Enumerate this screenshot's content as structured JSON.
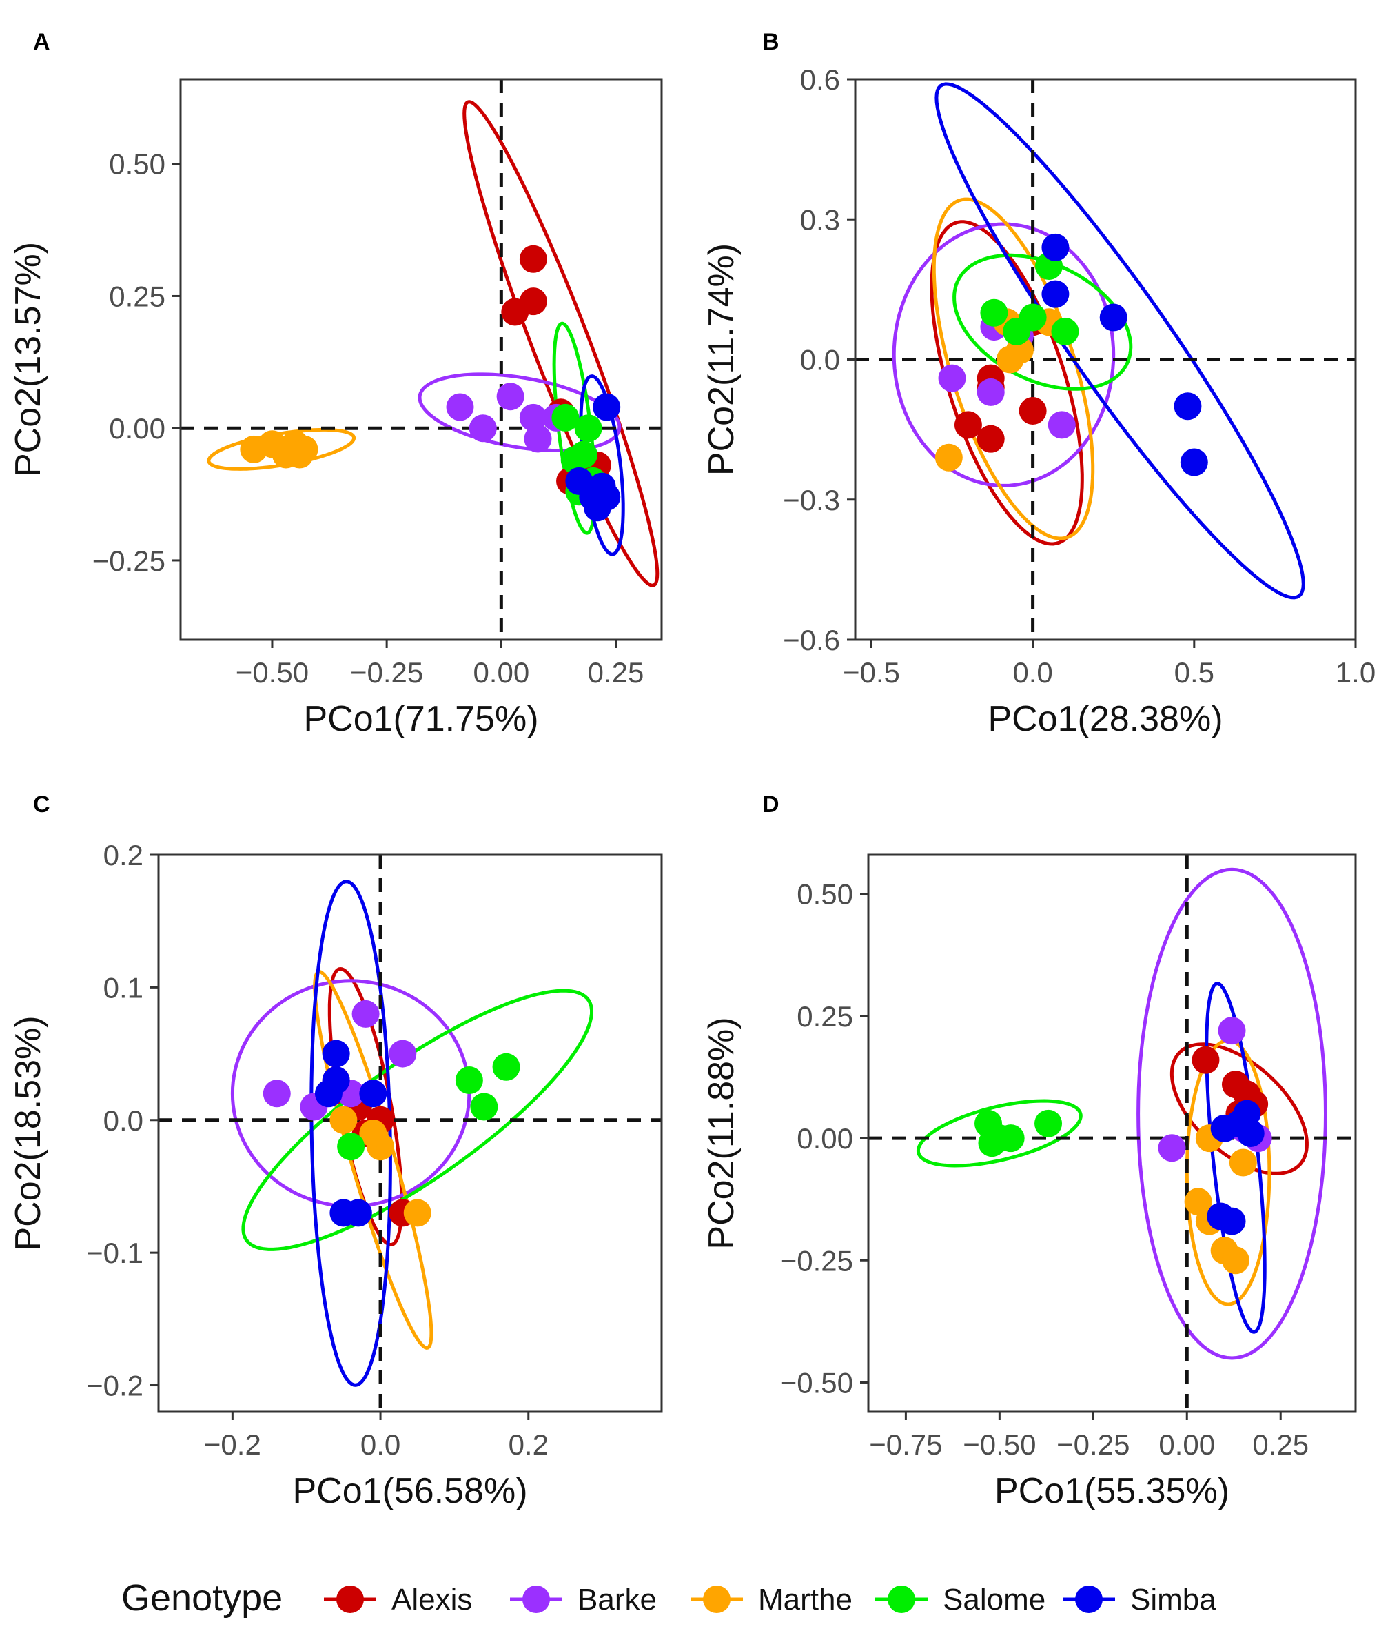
{
  "figure": {
    "legend_title": "Genotype",
    "legend_position": "bottom",
    "genotypes": [
      {
        "name": "Alexis",
        "color": "#CC0000"
      },
      {
        "name": "Barke",
        "color": "#9B30FF"
      },
      {
        "name": "Marthe",
        "color": "#FFA500"
      },
      {
        "name": "Salome",
        "color": "#00EE00"
      },
      {
        "name": "Simba",
        "color": "#0000EE"
      }
    ]
  },
  "chart_data": [
    {
      "panel": "A",
      "type": "scatter",
      "xlabel": "PCo1(71.75%)",
      "ylabel": "PCo2(13.57%)",
      "xlim": [
        -0.7,
        0.35
      ],
      "ylim": [
        -0.4,
        0.66
      ],
      "xticks": [
        -0.5,
        -0.25,
        0,
        0.25
      ],
      "xtick_labels": [
        "−0.50",
        "−0.25",
        "0.00",
        "0.25"
      ],
      "yticks": [
        -0.25,
        0,
        0.25,
        0.5
      ],
      "ytick_labels": [
        "−0.25",
        "0.00",
        "0.25",
        "0.50"
      ],
      "reference_lines": {
        "x": 0,
        "y": 0
      },
      "series": [
        {
          "name": "Alexis",
          "points": [
            [
              0.07,
              0.32
            ],
            [
              0.03,
              0.22
            ],
            [
              0.07,
              0.24
            ],
            [
              0.13,
              0.03
            ],
            [
              0.21,
              -0.07
            ],
            [
              0.15,
              -0.1
            ]
          ],
          "ellipse": {
            "cx": 0.13,
            "cy": 0.16,
            "rx": 0.5,
            "ry": 0.06,
            "angle": -66
          }
        },
        {
          "name": "Barke",
          "points": [
            [
              -0.09,
              0.04
            ],
            [
              -0.04,
              0
            ],
            [
              0.02,
              0.06
            ],
            [
              0.07,
              0.02
            ],
            [
              0.08,
              -0.02
            ],
            [
              0.12,
              0.02
            ]
          ],
          "ellipse": {
            "cx": 0.04,
            "cy": 0.03,
            "rx": 0.22,
            "ry": 0.066,
            "angle": -8
          }
        },
        {
          "name": "Marthe",
          "points": [
            [
              -0.54,
              -0.04
            ],
            [
              -0.5,
              -0.03
            ],
            [
              -0.47,
              -0.05
            ],
            [
              -0.45,
              -0.03
            ],
            [
              -0.43,
              -0.04
            ],
            [
              -0.44,
              -0.05
            ]
          ],
          "ellipse": {
            "cx": -0.48,
            "cy": -0.04,
            "rx": 0.16,
            "ry": 0.03,
            "angle": 8
          }
        },
        {
          "name": "Salome",
          "points": [
            [
              0.14,
              0.02
            ],
            [
              0.16,
              -0.06
            ],
            [
              0.18,
              -0.05
            ],
            [
              0.2,
              -0.1
            ],
            [
              0.17,
              -0.12
            ],
            [
              0.19,
              0
            ]
          ],
          "ellipse": {
            "cx": 0.16,
            "cy": 0.0,
            "rx": 0.2,
            "ry": 0.035,
            "angle": -82
          }
        },
        {
          "name": "Simba",
          "points": [
            [
              0.23,
              0.04
            ],
            [
              0.2,
              -0.13
            ],
            [
              0.21,
              -0.15
            ],
            [
              0.23,
              -0.13
            ],
            [
              0.17,
              -0.1
            ],
            [
              0.22,
              -0.11
            ]
          ],
          "ellipse": {
            "cx": 0.22,
            "cy": -0.07,
            "rx": 0.17,
            "ry": 0.04,
            "angle": -82
          }
        }
      ]
    },
    {
      "panel": "B",
      "type": "scatter",
      "xlabel": "PCo1(28.38%)",
      "ylabel": "PCo2(11.74%)",
      "xlim": [
        -0.55,
        1.0
      ],
      "ylim": [
        -0.6,
        0.6
      ],
      "xticks": [
        -0.5,
        0,
        0.5,
        1
      ],
      "xtick_labels": [
        "−0.5",
        "0.0",
        "0.5",
        "1.0"
      ],
      "yticks": [
        -0.6,
        -0.3,
        0,
        0.3,
        0.6
      ],
      "ytick_labels": [
        "−0.6",
        "−0.3",
        "0.0",
        "0.3",
        "0.6"
      ],
      "reference_lines": {
        "x": 0,
        "y": 0
      },
      "series": [
        {
          "name": "Alexis",
          "points": [
            [
              -0.13,
              -0.04
            ],
            [
              -0.2,
              -0.14
            ],
            [
              -0.13,
              -0.17
            ],
            [
              0,
              -0.11
            ],
            [
              0,
              0.08
            ],
            [
              -0.13,
              -0.06
            ]
          ],
          "ellipse": {
            "cx": -0.08,
            "cy": -0.05,
            "rx": 0.38,
            "ry": 0.17,
            "angle": -62
          }
        },
        {
          "name": "Barke",
          "points": [
            [
              -0.12,
              0.07
            ],
            [
              -0.04,
              0.05
            ],
            [
              -0.25,
              -0.04
            ],
            [
              -0.13,
              -0.07
            ],
            [
              0.09,
              -0.14
            ]
          ],
          "ellipse": {
            "cx": -0.09,
            "cy": 0.01,
            "rx": 0.34,
            "ry": 0.28,
            "angle": 0
          }
        },
        {
          "name": "Marthe",
          "points": [
            [
              -0.08,
              0.08
            ],
            [
              -0.04,
              0.02
            ],
            [
              -0.07,
              0
            ],
            [
              -0.26,
              -0.21
            ],
            [
              0.05,
              0.08
            ]
          ],
          "ellipse": {
            "cx": -0.06,
            "cy": -0.02,
            "rx": 0.4,
            "ry": 0.18,
            "angle": -62
          }
        },
        {
          "name": "Salome",
          "points": [
            [
              -0.12,
              0.1
            ],
            [
              0,
              0.09
            ],
            [
              0.1,
              0.06
            ],
            [
              -0.05,
              0.06
            ],
            [
              0.05,
              0.2
            ]
          ],
          "ellipse": {
            "cx": 0.03,
            "cy": 0.08,
            "rx": 0.28,
            "ry": 0.13,
            "angle": -14
          }
        },
        {
          "name": "Simba",
          "points": [
            [
              0.07,
              0.24
            ],
            [
              0.07,
              0.14
            ],
            [
              0.25,
              0.09
            ],
            [
              0.48,
              -0.1
            ],
            [
              0.5,
              -0.22
            ]
          ],
          "ellipse": {
            "cx": 0.27,
            "cy": 0.04,
            "rx": 0.78,
            "ry": 0.13,
            "angle": -44
          }
        }
      ]
    },
    {
      "panel": "C",
      "type": "scatter",
      "xlabel": "PCo1(56.58%)",
      "ylabel": "PCo2(18.53%)",
      "xlim": [
        -0.3,
        0.38
      ],
      "ylim": [
        -0.22,
        0.2
      ],
      "xticks": [
        -0.2,
        0,
        0.2
      ],
      "xtick_labels": [
        "−0.2",
        "0.0",
        "0.2"
      ],
      "yticks": [
        -0.2,
        -0.1,
        0,
        0.1,
        0.2
      ],
      "ytick_labels": [
        "−0.2",
        "−0.1",
        "0.0",
        "0.1",
        "0.2"
      ],
      "reference_lines": {
        "x": 0,
        "y": 0
      },
      "series": [
        {
          "name": "Alexis",
          "points": [
            [
              -0.06,
              0.03
            ],
            [
              -0.03,
              0.01
            ],
            [
              0,
              0
            ],
            [
              -0.02,
              -0.01
            ],
            [
              0.03,
              -0.07
            ]
          ],
          "ellipse": {
            "cx": -0.02,
            "cy": 0.01,
            "rx": 0.11,
            "ry": 0.033,
            "angle": -70
          }
        },
        {
          "name": "Barke",
          "points": [
            [
              -0.14,
              0.02
            ],
            [
              -0.02,
              0.08
            ],
            [
              0.03,
              0.05
            ],
            [
              -0.09,
              0.01
            ],
            [
              -0.04,
              0.02
            ]
          ],
          "ellipse": {
            "cx": -0.04,
            "cy": 0.02,
            "rx": 0.16,
            "ry": 0.085,
            "angle": 0
          }
        },
        {
          "name": "Marthe",
          "points": [
            [
              0,
              -0.02
            ],
            [
              -0.01,
              -0.01
            ],
            [
              0.05,
              -0.07
            ],
            [
              -0.05,
              0
            ]
          ],
          "ellipse": {
            "cx": -0.01,
            "cy": -0.03,
            "rx": 0.16,
            "ry": 0.027,
            "angle": -62
          }
        },
        {
          "name": "Salome",
          "points": [
            [
              0.12,
              0.03
            ],
            [
              0.17,
              0.04
            ],
            [
              0.14,
              0.01
            ],
            [
              -0.04,
              -0.02
            ]
          ],
          "ellipse": {
            "cx": 0.05,
            "cy": 0.0,
            "rx": 0.25,
            "ry": 0.05,
            "angle": 20
          }
        },
        {
          "name": "Simba",
          "points": [
            [
              -0.06,
              0.05
            ],
            [
              -0.07,
              0.02
            ],
            [
              -0.06,
              0.03
            ],
            [
              -0.01,
              0.02
            ],
            [
              -0.05,
              -0.07
            ],
            [
              -0.03,
              -0.07
            ]
          ],
          "ellipse": {
            "cx": -0.04,
            "cy": -0.01,
            "rx": 0.19,
            "ry": 0.053,
            "angle": -88
          }
        }
      ]
    },
    {
      "panel": "D",
      "type": "scatter",
      "xlabel": "PCo1(55.35%)",
      "ylabel": "PCo2(11.88%)",
      "xlim": [
        -0.85,
        0.45
      ],
      "ylim": [
        -0.56,
        0.58
      ],
      "xticks": [
        -0.75,
        -0.5,
        -0.25,
        0,
        0.25
      ],
      "xtick_labels": [
        "−0.75",
        "−0.50",
        "−0.25",
        "0.00",
        "0.25"
      ],
      "yticks": [
        -0.5,
        -0.25,
        0,
        0.25,
        0.5
      ],
      "ytick_labels": [
        "−0.50",
        "−0.25",
        "0.00",
        "0.25",
        "0.50"
      ],
      "reference_lines": {
        "x": 0,
        "y": 0
      },
      "series": [
        {
          "name": "Alexis",
          "points": [
            [
              0.05,
              0.16
            ],
            [
              0.13,
              0.11
            ],
            [
              0.16,
              0.09
            ],
            [
              0.18,
              0.07
            ],
            [
              0.14,
              0.05
            ]
          ],
          "ellipse": {
            "cx": 0.14,
            "cy": 0.06,
            "rx": 0.2,
            "ry": 0.1,
            "angle": -30
          }
        },
        {
          "name": "Barke",
          "points": [
            [
              -0.04,
              -0.02
            ],
            [
              0.12,
              0.22
            ],
            [
              0.19,
              0
            ],
            [
              0.15,
              0.02
            ]
          ],
          "ellipse": {
            "cx": 0.12,
            "cy": 0.05,
            "rx": 0.25,
            "ry": 0.5,
            "angle": 0
          }
        },
        {
          "name": "Marthe",
          "points": [
            [
              0.03,
              -0.13
            ],
            [
              0.06,
              -0.17
            ],
            [
              0.1,
              -0.23
            ],
            [
              0.13,
              -0.25
            ],
            [
              0.15,
              -0.05
            ],
            [
              0.06,
              0
            ]
          ],
          "ellipse": {
            "cx": 0.11,
            "cy": -0.07,
            "rx": 0.11,
            "ry": 0.27,
            "angle": 0
          }
        },
        {
          "name": "Salome",
          "points": [
            [
              -0.53,
              0.03
            ],
            [
              -0.5,
              0
            ],
            [
              -0.47,
              0
            ],
            [
              -0.37,
              0.03
            ],
            [
              -0.52,
              -0.01
            ]
          ],
          "ellipse": {
            "cx": -0.5,
            "cy": 0.01,
            "rx": 0.22,
            "ry": 0.055,
            "angle": 10
          }
        },
        {
          "name": "Simba",
          "points": [
            [
              0.1,
              0.02
            ],
            [
              0.14,
              0.03
            ],
            [
              0.16,
              0.05
            ],
            [
              0.09,
              -0.16
            ],
            [
              0.12,
              -0.17
            ],
            [
              0.17,
              0.01
            ]
          ],
          "ellipse": {
            "cx": 0.13,
            "cy": -0.04,
            "rx": 0.36,
            "ry": 0.06,
            "angle": -82
          }
        }
      ]
    }
  ]
}
